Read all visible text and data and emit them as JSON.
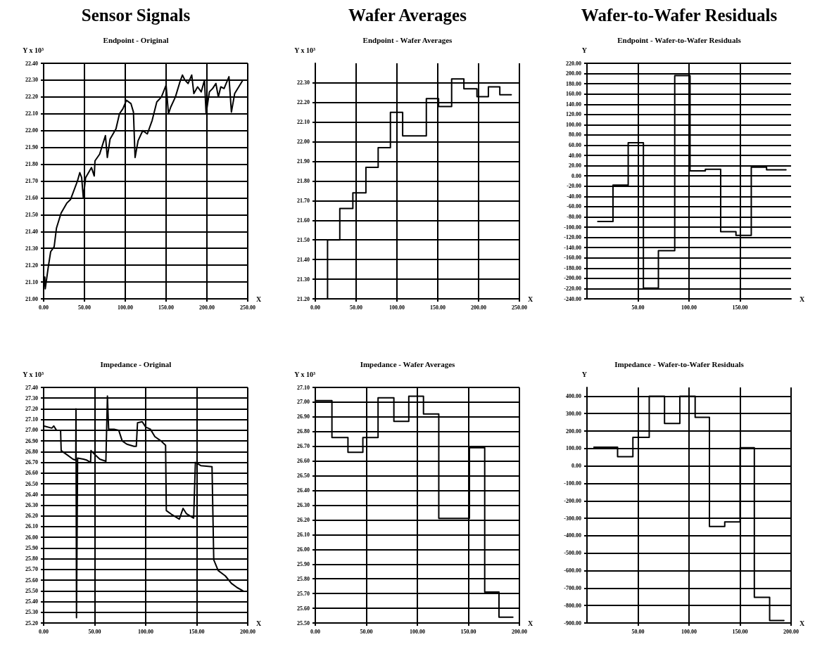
{
  "chart_data": [
    {
      "type": "line",
      "title": "Endpoint - Original",
      "annotations": [
        "Sensor Signals"
      ],
      "xlabel": "X",
      "ylabel": "Y x 10³",
      "grid": true,
      "marker": "none",
      "line_style": "solid",
      "x": [
        0,
        1.4,
        2,
        5.7,
        8.6,
        12.9,
        15.7,
        21.4,
        28.6,
        32.9,
        41.4,
        44.3,
        46.6,
        48.6,
        51.4,
        58.6,
        62,
        62.9,
        68.6,
        75.7,
        78,
        81.4,
        88.6,
        92.9,
        97.1,
        101.4,
        107,
        110,
        112,
        115.7,
        121.4,
        127,
        132.9,
        138.6,
        144.3,
        150,
        152.9,
        155.7,
        161.4,
        167,
        170,
        173,
        177,
        181.4,
        184,
        188.6,
        193,
        197,
        199,
        203,
        207,
        211,
        214,
        217,
        221,
        227,
        230,
        234,
        244
      ],
      "series": [
        {
          "color": "#000000",
          "values": [
            21.07,
            21.13,
            21.06,
            21.19,
            21.28,
            21.31,
            21.42,
            21.51,
            21.57,
            21.59,
            21.7,
            21.75,
            21.72,
            21.6,
            21.72,
            21.78,
            21.73,
            21.82,
            21.86,
            21.97,
            21.84,
            21.95,
            22.01,
            22.1,
            22.13,
            22.18,
            22.16,
            22.11,
            21.84,
            21.94,
            22.0,
            21.98,
            22.06,
            22.17,
            22.2,
            22.27,
            22.1,
            22.14,
            22.2,
            22.29,
            22.33,
            22.3,
            22.28,
            22.33,
            22.22,
            22.26,
            22.23,
            22.3,
            22.1,
            22.23,
            22.25,
            22.28,
            22.2,
            22.26,
            22.25,
            22.32,
            22.11,
            22.22,
            22.3
          ]
        }
      ],
      "xlim": [
        0,
        250
      ],
      "xticks": [
        {
          "value": 0,
          "label": "0.00"
        },
        {
          "value": 50,
          "label": "50.00"
        },
        {
          "value": 100,
          "label": "100.00"
        },
        {
          "value": 150,
          "label": "150.00"
        },
        {
          "value": 200,
          "label": "200.00"
        },
        {
          "value": 250,
          "label": "250.00"
        }
      ],
      "ylim": [
        21,
        22.4
      ],
      "yticks": [
        {
          "value": 21,
          "label": "21.00"
        },
        {
          "value": 21.1,
          "label": "21.10"
        },
        {
          "value": 21.2,
          "label": "21.20"
        },
        {
          "value": 21.3,
          "label": "21.30"
        },
        {
          "value": 21.4,
          "label": "21.40"
        },
        {
          "value": 21.5,
          "label": "21.50"
        },
        {
          "value": 21.6,
          "label": "21.60"
        },
        {
          "value": 21.7,
          "label": "21.70"
        },
        {
          "value": 21.8,
          "label": "21.80"
        },
        {
          "value": 21.9,
          "label": "21.90"
        },
        {
          "value": 22,
          "label": "22.00"
        },
        {
          "value": 22.1,
          "label": "22.10"
        },
        {
          "value": 22.2,
          "label": "22.20"
        },
        {
          "value": 22.3,
          "label": "22.30"
        },
        {
          "value": 22.4,
          "label": "22.40"
        }
      ]
    },
    {
      "type": "step",
      "title": "Endpoint - Wafer Averages",
      "annotations": [
        "Wafer Averages"
      ],
      "xlabel": "X",
      "ylabel": "Y x 10³",
      "grid": true,
      "marker": "none",
      "line_style": "solid",
      "x": [
        0,
        15,
        30,
        46,
        62,
        77,
        92,
        107,
        136,
        151,
        167,
        182,
        198,
        212,
        226,
        240
      ],
      "series": [
        {
          "color": "#000000",
          "values": [
            21.2,
            21.5,
            21.66,
            21.74,
            21.87,
            21.97,
            22.15,
            22.03,
            22.22,
            22.18,
            22.32,
            22.27,
            22.23,
            22.28,
            22.24,
            22.24
          ]
        }
      ],
      "xlim": [
        0,
        250
      ],
      "xticks": [
        {
          "value": 0,
          "label": "0.00"
        },
        {
          "value": 50,
          "label": "50.00"
        },
        {
          "value": 100,
          "label": "100.00"
        },
        {
          "value": 150,
          "label": "150.00"
        },
        {
          "value": 200,
          "label": "200.00"
        },
        {
          "value": 250,
          "label": "250.00"
        }
      ],
      "ylim": [
        21.2,
        22.4
      ],
      "yticks": [
        {
          "value": 21.2,
          "label": "21.20"
        },
        {
          "value": 21.3,
          "label": "21.30"
        },
        {
          "value": 21.4,
          "label": "21.40"
        },
        {
          "value": 21.5,
          "label": "21.50"
        },
        {
          "value": 21.6,
          "label": "21.60"
        },
        {
          "value": 21.7,
          "label": "21.70"
        },
        {
          "value": 21.8,
          "label": "21.80"
        },
        {
          "value": 21.9,
          "label": "21.90"
        },
        {
          "value": 22,
          "label": "22.00"
        },
        {
          "value": 22.1,
          "label": "22.10"
        },
        {
          "value": 22.2,
          "label": "22.20"
        },
        {
          "value": 22.3,
          "label": "22.30"
        }
      ]
    },
    {
      "type": "step",
      "title": "Endpoint - Wafer-to-Wafer Residuals",
      "annotations": [
        "Wafer-to-Wafer Residuals"
      ],
      "xlabel": "X",
      "ylabel": "Y",
      "grid": true,
      "marker": "none",
      "line_style": "solid",
      "x": [
        10.6,
        25.5,
        40.4,
        55.3,
        70,
        86,
        101,
        116,
        131,
        146,
        161,
        176,
        195
      ],
      "series": [
        {
          "color": "#000000",
          "values": [
            -89,
            -18,
            65,
            -219,
            -146,
            196,
            10,
            13,
            -109,
            -116,
            17,
            12,
            12
          ]
        }
      ],
      "xlim": [
        0,
        200
      ],
      "xticks": [
        {
          "value": 50,
          "label": "50.00"
        },
        {
          "value": 100,
          "label": "100.00"
        },
        {
          "value": 150,
          "label": "150.00"
        }
      ],
      "ylim": [
        -240,
        220
      ],
      "yticks": [
        {
          "value": -240,
          "label": "-240.00"
        },
        {
          "value": -220,
          "label": "-220.00"
        },
        {
          "value": -200,
          "label": "-200.00"
        },
        {
          "value": -180,
          "label": "-180.00"
        },
        {
          "value": -160,
          "label": "-160.00"
        },
        {
          "value": -140,
          "label": "-140.00"
        },
        {
          "value": -120,
          "label": "-120.00"
        },
        {
          "value": -100,
          "label": "-100.00"
        },
        {
          "value": -80,
          "label": "-80.00"
        },
        {
          "value": -60,
          "label": "-60.00"
        },
        {
          "value": -40,
          "label": "-40.00"
        },
        {
          "value": -20,
          "label": "-20.00"
        },
        {
          "value": 0,
          "label": "0.00"
        },
        {
          "value": 20,
          "label": "20.00"
        },
        {
          "value": 40,
          "label": "40.00"
        },
        {
          "value": 60,
          "label": "60.00"
        },
        {
          "value": 80,
          "label": "80.00"
        },
        {
          "value": 100,
          "label": "100.00"
        },
        {
          "value": 120,
          "label": "120.00"
        },
        {
          "value": 140,
          "label": "140.00"
        },
        {
          "value": 160,
          "label": "160.00"
        },
        {
          "value": 180,
          "label": "180.00"
        },
        {
          "value": 200,
          "label": "200.00"
        },
        {
          "value": 220,
          "label": "220.00"
        }
      ]
    },
    {
      "type": "line",
      "title": "Impedance - Original",
      "xlabel": "X",
      "ylabel": "Y x 10³",
      "grid": true,
      "marker": "none",
      "line_style": "solid",
      "x": [
        0,
        8,
        9.9,
        12.6,
        16.6,
        17.2,
        23,
        28.7,
        31.5,
        31.7,
        32.2,
        33.3,
        39,
        42.5,
        46,
        46.4,
        50.6,
        55,
        61,
        62.5,
        63.7,
        69,
        73.6,
        77,
        81.6,
        88.5,
        90.8,
        92,
        96.6,
        100,
        104.6,
        109,
        115,
        119.5,
        120.2,
        126,
        133,
        136.6,
        140,
        147,
        148.7,
        154,
        165,
        166.7,
        171,
        178,
        184,
        189.7,
        195.4
      ],
      "series": [
        {
          "color": "#000000",
          "values": [
            27.04,
            27.02,
            27.04,
            27.0,
            27.0,
            26.81,
            26.77,
            26.73,
            26.72,
            27.2,
            25.25,
            26.74,
            26.73,
            26.72,
            26.7,
            26.81,
            26.77,
            26.73,
            26.71,
            27.32,
            27.01,
            27.01,
            27.0,
            26.9,
            26.87,
            26.85,
            26.85,
            27.07,
            27.08,
            27.03,
            27.01,
            26.94,
            26.9,
            26.86,
            26.25,
            26.21,
            26.17,
            26.27,
            26.22,
            26.18,
            26.7,
            26.67,
            26.66,
            25.79,
            25.69,
            25.64,
            25.57,
            25.53,
            25.5
          ]
        }
      ],
      "xlim": [
        0,
        200
      ],
      "xticks": [
        {
          "value": 0,
          "label": "0.00"
        },
        {
          "value": 50,
          "label": "50.00"
        },
        {
          "value": 100,
          "label": "100.00"
        },
        {
          "value": 150,
          "label": "150.00"
        },
        {
          "value": 200,
          "label": "200.00"
        }
      ],
      "ylim": [
        25.2,
        27.4
      ],
      "yticks": [
        {
          "value": 25.2,
          "label": "25.20"
        },
        {
          "value": 25.3,
          "label": "25.30"
        },
        {
          "value": 25.4,
          "label": "25.40"
        },
        {
          "value": 25.5,
          "label": "25.50"
        },
        {
          "value": 25.6,
          "label": "25.60"
        },
        {
          "value": 25.7,
          "label": "25.70"
        },
        {
          "value": 25.8,
          "label": "25.80"
        },
        {
          "value": 25.9,
          "label": "25.90"
        },
        {
          "value": 26,
          "label": "26.00"
        },
        {
          "value": 26.1,
          "label": "26.10"
        },
        {
          "value": 26.2,
          "label": "26.20"
        },
        {
          "value": 26.3,
          "label": "26.30"
        },
        {
          "value": 26.4,
          "label": "26.40"
        },
        {
          "value": 26.5,
          "label": "26.50"
        },
        {
          "value": 26.6,
          "label": "26.60"
        },
        {
          "value": 26.7,
          "label": "26.70"
        },
        {
          "value": 26.8,
          "label": "26.80"
        },
        {
          "value": 26.9,
          "label": "26.90"
        },
        {
          "value": 27,
          "label": "27.00"
        },
        {
          "value": 27.1,
          "label": "27.10"
        },
        {
          "value": 27.2,
          "label": "27.20"
        },
        {
          "value": 27.3,
          "label": "27.30"
        },
        {
          "value": 27.4,
          "label": "27.40"
        }
      ]
    },
    {
      "type": "step",
      "title": "Impedance - Wafer Averages",
      "xlabel": "X",
      "ylabel": "Y x 10³",
      "grid": true,
      "marker": "none",
      "line_style": "solid",
      "x": [
        0,
        16.3,
        32,
        46.6,
        61.5,
        77,
        91.6,
        106,
        121,
        136,
        151,
        166,
        180,
        193.6
      ],
      "series": [
        {
          "color": "#000000",
          "values": [
            27.01,
            26.76,
            26.66,
            26.76,
            27.03,
            26.87,
            27.04,
            26.92,
            26.21,
            26.21,
            26.69,
            25.71,
            25.54,
            25.54
          ]
        }
      ],
      "xlim": [
        0,
        200
      ],
      "xticks": [
        {
          "value": 0,
          "label": "0.00"
        },
        {
          "value": 50,
          "label": "50.00"
        },
        {
          "value": 100,
          "label": "100.00"
        },
        {
          "value": 150,
          "label": "150.00"
        },
        {
          "value": 200,
          "label": "200.00"
        }
      ],
      "ylim": [
        25.5,
        27.1
      ],
      "yticks": [
        {
          "value": 25.5,
          "label": "25.50"
        },
        {
          "value": 25.6,
          "label": "25.60"
        },
        {
          "value": 25.7,
          "label": "25.70"
        },
        {
          "value": 25.8,
          "label": "25.80"
        },
        {
          "value": 25.9,
          "label": "25.90"
        },
        {
          "value": 26,
          "label": "26.00"
        },
        {
          "value": 26.1,
          "label": "26.10"
        },
        {
          "value": 26.2,
          "label": "26.20"
        },
        {
          "value": 26.3,
          "label": "26.30"
        },
        {
          "value": 26.4,
          "label": "26.40"
        },
        {
          "value": 26.5,
          "label": "26.50"
        },
        {
          "value": 26.6,
          "label": "26.60"
        },
        {
          "value": 26.7,
          "label": "26.70"
        },
        {
          "value": 26.8,
          "label": "26.80"
        },
        {
          "value": 26.9,
          "label": "26.90"
        },
        {
          "value": 27,
          "label": "27.00"
        },
        {
          "value": 27.1,
          "label": "27.10"
        }
      ]
    },
    {
      "type": "step",
      "title": "Impedance - Wafer-to-Wafer Residuals",
      "xlabel": "X",
      "ylabel": "Y",
      "grid": true,
      "marker": "none",
      "line_style": "solid",
      "x": [
        6.8,
        30,
        45,
        61,
        76,
        91,
        106,
        120,
        135,
        150,
        164,
        179,
        193
      ],
      "series": [
        {
          "color": "#000000",
          "values": [
            107,
            53,
            164,
            400,
            243,
            400,
            279,
            -347,
            -321,
            104,
            -753,
            -886,
            -886
          ]
        }
      ],
      "xlim": [
        0,
        200
      ],
      "xticks": [
        {
          "value": 50,
          "label": "50.00"
        },
        {
          "value": 100,
          "label": "100.00"
        },
        {
          "value": 150,
          "label": "150.00"
        },
        {
          "value": 200,
          "label": "200.00"
        }
      ],
      "ylim": [
        -900,
        450
      ],
      "yticks": [
        {
          "value": -900,
          "label": "-900.00"
        },
        {
          "value": -800,
          "label": "-800.00"
        },
        {
          "value": -700,
          "label": "-700.00"
        },
        {
          "value": -600,
          "label": "-600.00"
        },
        {
          "value": -500,
          "label": "-500.00"
        },
        {
          "value": -400,
          "label": "-400.00"
        },
        {
          "value": -300,
          "label": "-300.00"
        },
        {
          "value": -200,
          "label": "-200.00"
        },
        {
          "value": -100,
          "label": "-100.00"
        },
        {
          "value": 0,
          "label": "0.00"
        },
        {
          "value": 100,
          "label": "100.00"
        },
        {
          "value": 200,
          "label": "200.00"
        },
        {
          "value": 300,
          "label": "300.00"
        },
        {
          "value": 400,
          "label": "400.00"
        }
      ]
    }
  ]
}
